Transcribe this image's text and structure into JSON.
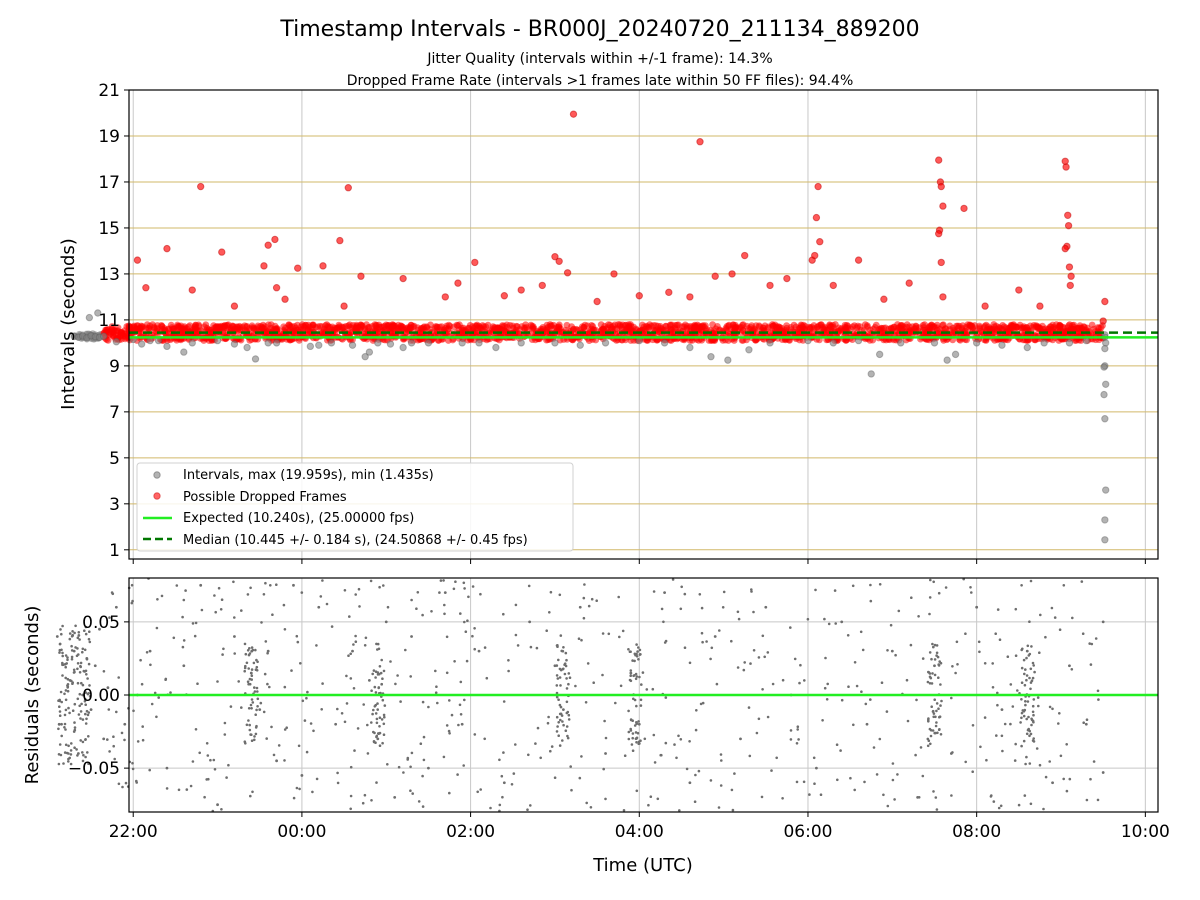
{
  "chart_data": [
    {
      "type": "scatter",
      "panel": "intervals",
      "title": "Timestamp Intervals - BR000J_20240720_211134_889200",
      "subtitle_lines": [
        "Jitter Quality (intervals within +/-1 frame): 14.3%",
        "Dropped Frame Rate (intervals >1 frames late within 50 FF files): 94.4%"
      ],
      "ylabel": "Intervals (seconds)",
      "xlabel": "",
      "x_axis_unit": "hours after 00:00 UTC (negative = previous day)",
      "xlim": [
        -2.05,
        10.15
      ],
      "ylim": [
        0.6,
        21.0
      ],
      "y_ticks": [
        1,
        3,
        5,
        7,
        9,
        11,
        13,
        15,
        17,
        19,
        21
      ],
      "y_tick_labels": [
        "1",
        "3",
        "5",
        "7",
        "9",
        "11",
        "13",
        "15",
        "17",
        "19",
        "21"
      ],
      "x_ticks": [
        -2,
        0,
        2,
        4,
        6,
        8,
        10
      ],
      "x_tick_labels": [
        "22:00",
        "00:00",
        "02:00",
        "04:00",
        "06:00",
        "08:00",
        "10:00"
      ],
      "grid_horizontal_color": "#d2b96a",
      "grid_vertical_color": "#c8c8c8",
      "legend_location": "lower-left",
      "legend": [
        "Intervals, max (19.959s), min (1.435s)",
        "Possible Dropped Frames",
        "Expected (10.240s), (25.00000 fps)",
        "Median (10.445 +/- 0.184 s), (24.50868 +/- 0.45 fps)"
      ],
      "expected_value": 10.24,
      "median_value": 10.445,
      "colors": {
        "intervals": "#808080",
        "dropped": "#ff0000",
        "expected": "#22ee22",
        "median": "#007700"
      },
      "series": [
        {
          "name": "Intervals, max (19.959s), min (1.435s)",
          "points": [
            [
              -2.7,
              10.28
            ],
            [
              -2.65,
              10.25
            ],
            [
              -2.6,
              10.3
            ],
            [
              -2.55,
              10.22
            ],
            [
              -2.5,
              10.31
            ],
            [
              -2.45,
              10.27
            ],
            [
              -2.4,
              10.24
            ],
            [
              -2.35,
              10.29
            ],
            [
              -2.52,
              11.1
            ],
            [
              -2.42,
              11.3
            ],
            [
              -2.2,
              10.05
            ],
            [
              -2.0,
              10.15
            ],
            [
              -1.9,
              9.95
            ],
            [
              -1.8,
              10.1
            ],
            [
              -1.7,
              10.1
            ],
            [
              -1.6,
              9.85
            ],
            [
              -1.4,
              9.6
            ],
            [
              -1.3,
              10.0
            ],
            [
              -1.0,
              10.1
            ],
            [
              -0.8,
              9.95
            ],
            [
              -0.65,
              9.8
            ],
            [
              -0.55,
              9.3
            ],
            [
              -0.4,
              10.0
            ],
            [
              -0.3,
              10.0
            ],
            [
              0.1,
              9.85
            ],
            [
              0.2,
              9.9
            ],
            [
              0.35,
              10.0
            ],
            [
              0.6,
              9.9
            ],
            [
              0.75,
              9.4
            ],
            [
              0.8,
              9.6
            ],
            [
              0.9,
              10.0
            ],
            [
              1.05,
              9.95
            ],
            [
              1.2,
              9.8
            ],
            [
              1.3,
              10.0
            ],
            [
              1.5,
              10.0
            ],
            [
              1.9,
              10.0
            ],
            [
              2.1,
              10.0
            ],
            [
              2.3,
              9.8
            ],
            [
              2.6,
              10.0
            ],
            [
              3.0,
              10.0
            ],
            [
              3.3,
              9.9
            ],
            [
              3.6,
              10.0
            ],
            [
              4.0,
              10.1
            ],
            [
              4.3,
              10.0
            ],
            [
              4.6,
              9.8
            ],
            [
              4.85,
              9.4
            ],
            [
              5.05,
              9.25
            ],
            [
              5.3,
              9.7
            ],
            [
              5.55,
              10.0
            ],
            [
              6.0,
              10.1
            ],
            [
              6.3,
              10.0
            ],
            [
              6.6,
              10.1
            ],
            [
              6.75,
              8.65
            ],
            [
              6.85,
              9.5
            ],
            [
              7.1,
              10.0
            ],
            [
              7.5,
              10.0
            ],
            [
              7.65,
              9.25
            ],
            [
              7.75,
              9.5
            ],
            [
              8.0,
              10.0
            ],
            [
              8.3,
              9.9
            ],
            [
              8.6,
              9.8
            ],
            [
              8.8,
              10.0
            ],
            [
              9.1,
              10.0
            ],
            [
              9.3,
              10.1
            ],
            [
              9.52,
              10.35
            ],
            [
              9.52,
              10.25
            ],
            [
              9.53,
              10.0
            ],
            [
              9.52,
              9.75
            ],
            [
              9.52,
              9.0
            ],
            [
              9.51,
              8.95
            ],
            [
              9.53,
              8.2
            ],
            [
              9.51,
              7.75
            ],
            [
              9.52,
              6.7
            ],
            [
              9.53,
              3.6
            ],
            [
              9.52,
              2.3
            ],
            [
              9.52,
              1.435
            ]
          ]
        },
        {
          "name": "Possible Dropped Frames",
          "points": [
            [
              -1.95,
              13.6
            ],
            [
              -1.85,
              12.4
            ],
            [
              -1.6,
              14.1
            ],
            [
              -1.3,
              12.3
            ],
            [
              -1.2,
              16.8
            ],
            [
              -0.95,
              13.95
            ],
            [
              -0.8,
              11.6
            ],
            [
              -0.4,
              14.25
            ],
            [
              -0.32,
              14.5
            ],
            [
              -0.3,
              12.4
            ],
            [
              -0.2,
              11.9
            ],
            [
              -0.45,
              13.35
            ],
            [
              -0.05,
              13.25
            ],
            [
              0.25,
              13.35
            ],
            [
              0.45,
              14.45
            ],
            [
              0.5,
              11.6
            ],
            [
              0.55,
              16.75
            ],
            [
              0.7,
              12.9
            ],
            [
              1.2,
              12.8
            ],
            [
              1.7,
              12.0
            ],
            [
              1.85,
              12.6
            ],
            [
              2.05,
              13.5
            ],
            [
              2.4,
              12.05
            ],
            [
              2.6,
              12.3
            ],
            [
              2.85,
              12.5
            ],
            [
              3.0,
              13.75
            ],
            [
              3.05,
              13.55
            ],
            [
              3.15,
              13.05
            ],
            [
              3.22,
              19.95
            ],
            [
              3.5,
              11.8
            ],
            [
              3.7,
              13.0
            ],
            [
              4.0,
              12.05
            ],
            [
              4.35,
              12.2
            ],
            [
              4.6,
              12.0
            ],
            [
              4.72,
              18.75
            ],
            [
              4.9,
              12.9
            ],
            [
              5.1,
              13.0
            ],
            [
              5.25,
              13.8
            ],
            [
              5.55,
              12.5
            ],
            [
              5.75,
              12.8
            ],
            [
              6.05,
              13.6
            ],
            [
              6.08,
              13.8
            ],
            [
              6.1,
              15.45
            ],
            [
              6.12,
              16.8
            ],
            [
              6.14,
              14.4
            ],
            [
              6.3,
              12.5
            ],
            [
              6.6,
              13.6
            ],
            [
              6.9,
              11.9
            ],
            [
              7.2,
              12.6
            ],
            [
              7.55,
              17.95
            ],
            [
              7.57,
              17.0
            ],
            [
              7.58,
              16.8
            ],
            [
              7.6,
              15.95
            ],
            [
              7.56,
              14.9
            ],
            [
              7.55,
              14.75
            ],
            [
              7.58,
              13.5
            ],
            [
              7.6,
              12.0
            ],
            [
              7.85,
              15.85
            ],
            [
              8.1,
              11.6
            ],
            [
              8.5,
              12.3
            ],
            [
              8.75,
              11.6
            ],
            [
              9.05,
              17.9
            ],
            [
              9.06,
              17.65
            ],
            [
              9.08,
              15.55
            ],
            [
              9.09,
              15.1
            ],
            [
              9.07,
              14.2
            ],
            [
              9.05,
              14.1
            ],
            [
              9.1,
              13.3
            ],
            [
              9.12,
              12.9
            ],
            [
              9.11,
              12.5
            ],
            [
              9.52,
              11.8
            ],
            [
              9.5,
              10.95
            ]
          ]
        }
      ],
      "dense_band": {
        "intervals_center": 10.45,
        "dropped_center": 10.5,
        "segments": [
          {
            "x": [
              -2.7,
              -2.35
            ],
            "center": 10.28,
            "spread": 0.12,
            "kind": "intervals"
          },
          {
            "x": [
              -2.35,
              9.5
            ],
            "center": 10.45,
            "spread": 0.35,
            "kind": "dropped"
          }
        ]
      }
    },
    {
      "type": "scatter",
      "panel": "residuals",
      "ylabel": "Residuals (seconds)",
      "xlabel": "Time (UTC)",
      "xlim": [
        -2.05,
        10.15
      ],
      "ylim": [
        -0.08,
        0.08
      ],
      "y_ticks": [
        -0.05,
        0.0,
        0.05
      ],
      "y_tick_labels": [
        "−0.05",
        "0.00",
        "0.05"
      ],
      "x_ticks": [
        -2,
        0,
        2,
        4,
        6,
        8,
        10
      ],
      "x_tick_labels": [
        "22:00",
        "00:00",
        "02:00",
        "04:00",
        "06:00",
        "08:00",
        "10:00"
      ],
      "zero_line": 0.0,
      "colors": {
        "points": "#6e6e6e",
        "zero": "#22ee22"
      },
      "cluster_times": [
        -2.7,
        -0.6,
        0.9,
        3.1,
        3.95,
        7.5,
        8.6
      ],
      "series": [
        {
          "name": "",
          "points": [
            [
              -2.9,
              0.04
            ],
            [
              -2.85,
              -0.02
            ],
            [
              -2.75,
              0.01
            ],
            [
              -2.7,
              0.03
            ],
            [
              -2.65,
              -0.04
            ],
            [
              -2.6,
              0.0
            ],
            [
              -2.55,
              0.025
            ],
            [
              -2.5,
              -0.01
            ],
            [
              -2.45,
              0.02
            ],
            [
              -2.4,
              0.045
            ],
            [
              -2.35,
              -0.03
            ],
            [
              -2.3,
              0.005
            ],
            [
              -2.2,
              0.06
            ],
            [
              -2.1,
              -0.02
            ],
            [
              -1.95,
              0.0
            ],
            [
              -1.8,
              0.03
            ],
            [
              -1.6,
              -0.05
            ],
            [
              -1.4,
              0.02
            ],
            [
              -1.2,
              0.075
            ],
            [
              -1.0,
              -0.075
            ],
            [
              -0.8,
              0.04
            ],
            [
              -0.6,
              0.015
            ],
            [
              -0.5,
              -0.01
            ],
            [
              -0.4,
              0.03
            ],
            [
              -0.3,
              -0.045
            ],
            [
              -0.1,
              0.075
            ],
            [
              0.0,
              -0.055
            ],
            [
              0.2,
              0.06
            ],
            [
              0.4,
              -0.02
            ],
            [
              0.6,
              0.03
            ],
            [
              0.8,
              0.01
            ],
            [
              0.9,
              -0.03
            ],
            [
              1.0,
              0.05
            ],
            [
              1.1,
              -0.07
            ],
            [
              1.3,
              0.04
            ],
            [
              1.5,
              -0.05
            ],
            [
              1.7,
              0.07
            ],
            [
              1.9,
              -0.02
            ],
            [
              2.1,
              0.03
            ],
            [
              2.4,
              -0.06
            ],
            [
              2.7,
              0.05
            ],
            [
              3.0,
              0.02
            ],
            [
              3.1,
              -0.01
            ],
            [
              3.3,
              0.06
            ],
            [
              3.6,
              -0.04
            ],
            [
              3.9,
              0.015
            ],
            [
              4.0,
              -0.02
            ],
            [
              4.3,
              0.07
            ],
            [
              4.6,
              -0.06
            ],
            [
              4.9,
              0.04
            ],
            [
              5.2,
              -0.03
            ],
            [
              5.5,
              0.06
            ],
            [
              5.8,
              0.0
            ],
            [
              6.1,
              -0.05
            ],
            [
              6.4,
              0.05
            ],
            [
              6.7,
              -0.02
            ],
            [
              7.0,
              0.03
            ],
            [
              7.3,
              -0.07
            ],
            [
              7.5,
              0.02
            ],
            [
              7.7,
              -0.04
            ],
            [
              8.0,
              0.06
            ],
            [
              8.3,
              -0.01
            ],
            [
              8.6,
              0.03
            ],
            [
              8.9,
              -0.06
            ],
            [
              9.1,
              0.02
            ],
            [
              9.3,
              -0.02
            ],
            [
              9.5,
              0.05
            ],
            [
              9.5,
              -0.053
            ]
          ]
        }
      ]
    }
  ]
}
